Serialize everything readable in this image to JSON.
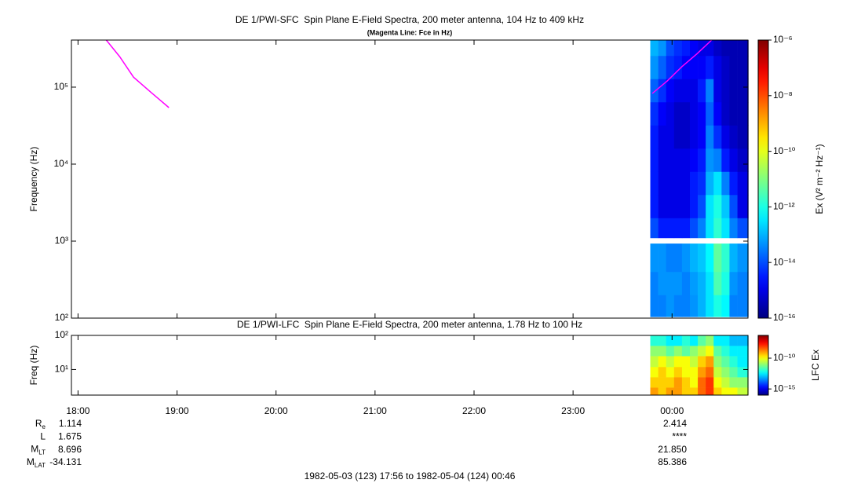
{
  "chart_data": [
    {
      "type": "spectrogram",
      "title": "DE 1/PWI-SFC  Spin Plane E-Field Spectra, 200 meter antenna, 104 Hz to 409 kHz",
      "subtitle": "(Magenta Line: Fce in Hz)",
      "ylabel": "Frequency (Hz)",
      "yscale": "log",
      "ylim": [
        100,
        409000
      ],
      "yticks": [
        {
          "value": 100,
          "label": "10²"
        },
        {
          "value": 1000,
          "label": "10³"
        },
        {
          "value": 10000,
          "label": "10⁴"
        },
        {
          "value": 100000,
          "label": "10⁵"
        }
      ],
      "xlim": [
        17.9333,
        24.7667
      ],
      "xticks": [
        18,
        19,
        20,
        21,
        22,
        23,
        24
      ],
      "x_bins": [
        23.78,
        23.86,
        23.94,
        24.02,
        24.1,
        24.18,
        24.26,
        24.34,
        24.42,
        24.5,
        24.58,
        24.66,
        24.77
      ],
      "y_bins": [
        104,
        200,
        400,
        930,
        1100,
        2000,
        4000,
        8000,
        16000,
        32000,
        64000,
        128000,
        256000,
        409000
      ],
      "values": [
        [
          3.2e-14,
          3.2e-14,
          5e-14,
          3.2e-14,
          3.2e-14,
          5e-14,
          1e-13,
          3.2e-13,
          1e-12,
          5e-13,
          3.2e-14,
          3.2e-14
        ],
        [
          3.2e-14,
          5e-14,
          5e-14,
          5e-14,
          3.2e-14,
          6e-14,
          1e-13,
          3.2e-13,
          3.2e-12,
          1e-12,
          5e-14,
          3.2e-14
        ],
        [
          5e-14,
          5e-14,
          3.2e-14,
          3.2e-14,
          5e-14,
          1e-13,
          1.6e-13,
          5e-13,
          5e-12,
          1.6e-12,
          1e-13,
          5e-14
        ],
        [
          null,
          null,
          null,
          null,
          null,
          null,
          null,
          null,
          null,
          null,
          null,
          null
        ],
        [
          1e-14,
          3.2e-15,
          3.2e-15,
          3.2e-15,
          3.2e-15,
          1e-14,
          3.2e-14,
          3.2e-13,
          1.6e-12,
          3.2e-13,
          3.2e-14,
          1e-14
        ],
        [
          3.2e-15,
          1e-15,
          1e-15,
          1e-15,
          1e-15,
          3.2e-15,
          1e-14,
          3.2e-13,
          1e-12,
          1.6e-13,
          1e-14,
          1e-15
        ],
        [
          3.2e-15,
          1e-15,
          1e-15,
          1e-15,
          1e-15,
          3.2e-15,
          5e-15,
          1e-13,
          3.2e-13,
          3.2e-14,
          3.2e-15,
          1e-15
        ],
        [
          3.2e-15,
          1e-15,
          1e-15,
          1e-15,
          1e-15,
          1.6e-15,
          3.2e-15,
          5e-14,
          3.2e-14,
          3.2e-15,
          1e-15,
          5e-16
        ],
        [
          3.2e-15,
          1e-15,
          1e-15,
          5e-16,
          5e-16,
          1e-15,
          1.6e-15,
          3.2e-14,
          5e-15,
          1e-15,
          5e-16,
          3.2e-16
        ],
        [
          5e-15,
          1.6e-15,
          1e-15,
          5e-16,
          5e-16,
          1e-15,
          1.6e-15,
          1.6e-14,
          1.6e-15,
          5e-16,
          3.2e-16,
          3.2e-16
        ],
        [
          1.6e-14,
          5e-15,
          1.6e-15,
          1e-15,
          1e-15,
          1e-15,
          3.2e-15,
          3.2e-14,
          1e-15,
          5e-16,
          3.2e-16,
          3.2e-16
        ],
        [
          5e-14,
          1.6e-14,
          5e-15,
          3.2e-15,
          1.6e-15,
          1.6e-15,
          1.6e-15,
          3.2e-15,
          1e-15,
          5e-16,
          3.2e-16,
          3.2e-16
        ],
        [
          1e-13,
          5e-14,
          1e-14,
          5e-15,
          3.2e-15,
          1.6e-15,
          1e-15,
          1e-15,
          5e-16,
          3.2e-16,
          3.2e-16,
          3.2e-16
        ]
      ],
      "colorbar": {
        "label": "Ex (V² m⁻² Hz⁻¹)",
        "scale": "log",
        "colormap": "jet",
        "lim": [
          1e-16,
          1e-06
        ],
        "ticks": [
          {
            "value": 1e-16,
            "label": "10⁻¹⁶"
          },
          {
            "value": 1e-14,
            "label": "10⁻¹⁴"
          },
          {
            "value": 1e-12,
            "label": "10⁻¹²"
          },
          {
            "value": 1e-10,
            "label": "10⁻¹⁰"
          },
          {
            "value": 1e-08,
            "label": "10⁻⁸"
          },
          {
            "value": 1e-06,
            "label": "10⁻⁶"
          }
        ]
      },
      "line": {
        "color": "#ff00ff",
        "x": [
          18.285,
          18.42,
          18.56,
          18.74,
          18.918,
          21.0,
          23.8,
          23.95,
          24.1,
          24.25,
          24.4
        ],
        "values": [
          409000,
          250000,
          135000,
          85000,
          54300,
          null,
          83000,
          120000,
          185000,
          270000,
          409000
        ]
      }
    },
    {
      "type": "spectrogram",
      "title": "DE 1/PWI-LFC  Spin Plane E-Field Spectra, 200 meter antenna, 1.78 Hz to 100 Hz",
      "ylabel": "Freq (Hz)",
      "yscale": "log",
      "ylim": [
        1.78,
        100
      ],
      "yticks": [
        {
          "value": 10,
          "label": "10¹"
        },
        {
          "value": 100,
          "label": "10²"
        }
      ],
      "xlim": [
        17.9333,
        24.7667
      ],
      "xticks": [
        {
          "value": 18,
          "label": "18:00"
        },
        {
          "value": 19,
          "label": "19:00"
        },
        {
          "value": 20,
          "label": "20:00"
        },
        {
          "value": 21,
          "label": "21:00"
        },
        {
          "value": 22,
          "label": "22:00"
        },
        {
          "value": 23,
          "label": "23:00"
        },
        {
          "value": 24,
          "label": "00:00"
        }
      ],
      "x_bins": [
        23.78,
        23.86,
        23.94,
        24.02,
        24.1,
        24.18,
        24.26,
        24.34,
        24.42,
        24.5,
        24.58,
        24.66,
        24.77
      ],
      "y_bins": [
        1.78,
        3,
        6,
        12,
        25,
        50,
        100
      ],
      "values": [
        [
          1e-09,
          3.2e-10,
          1e-09,
          1e-09,
          3.2e-10,
          3.2e-10,
          3.2e-09,
          1e-08,
          3.2e-10,
          1e-10,
          1e-10,
          3.2e-11
        ],
        [
          3.2e-10,
          3.2e-10,
          3.2e-10,
          1e-09,
          3.2e-10,
          1e-10,
          3.2e-09,
          1e-08,
          1e-10,
          3.2e-11,
          1e-11,
          1e-11
        ],
        [
          1e-10,
          3.2e-10,
          1e-10,
          3.2e-10,
          1e-10,
          1e-10,
          1e-09,
          3.2e-09,
          3.2e-11,
          1e-11,
          3.2e-12,
          1e-12
        ],
        [
          3.2e-11,
          1e-10,
          3.2e-11,
          1e-10,
          1e-10,
          3.2e-11,
          3.2e-10,
          1e-09,
          1e-11,
          3.2e-12,
          1e-12,
          3.2e-13
        ],
        [
          1e-11,
          1e-11,
          3.2e-12,
          1e-11,
          3.2e-12,
          1e-11,
          3.2e-11,
          1e-10,
          3.2e-12,
          1e-12,
          3.2e-13,
          3.2e-13
        ],
        [
          1e-12,
          1e-12,
          3.2e-13,
          3.2e-13,
          1e-12,
          3.2e-13,
          3.2e-12,
          1e-11,
          3.2e-13,
          3.2e-13,
          1e-13,
          1e-13
        ]
      ],
      "colorbar": {
        "label": "LFC Ex",
        "scale": "log",
        "colormap": "jet",
        "lim": [
          1e-16,
          5e-07
        ],
        "ticks": [
          {
            "value": 1e-15,
            "label": "10⁻¹⁵"
          },
          {
            "value": 1e-10,
            "label": "10⁻¹⁰"
          }
        ]
      }
    }
  ],
  "ephemeris": [
    {
      "label": "R",
      "sub": "e",
      "values": [
        "1.114",
        "2.414"
      ]
    },
    {
      "label": "L",
      "values": [
        "1.675",
        "****"
      ]
    },
    {
      "label": "M",
      "sub": "LT",
      "values": [
        "8.696",
        "21.850"
      ]
    },
    {
      "label": "M",
      "sub": "LAT",
      "values": [
        "-34.131",
        "85.386"
      ]
    }
  ],
  "time_range": "1982-05-03 (123) 17:56 to 1982-05-04 (124) 00:46"
}
